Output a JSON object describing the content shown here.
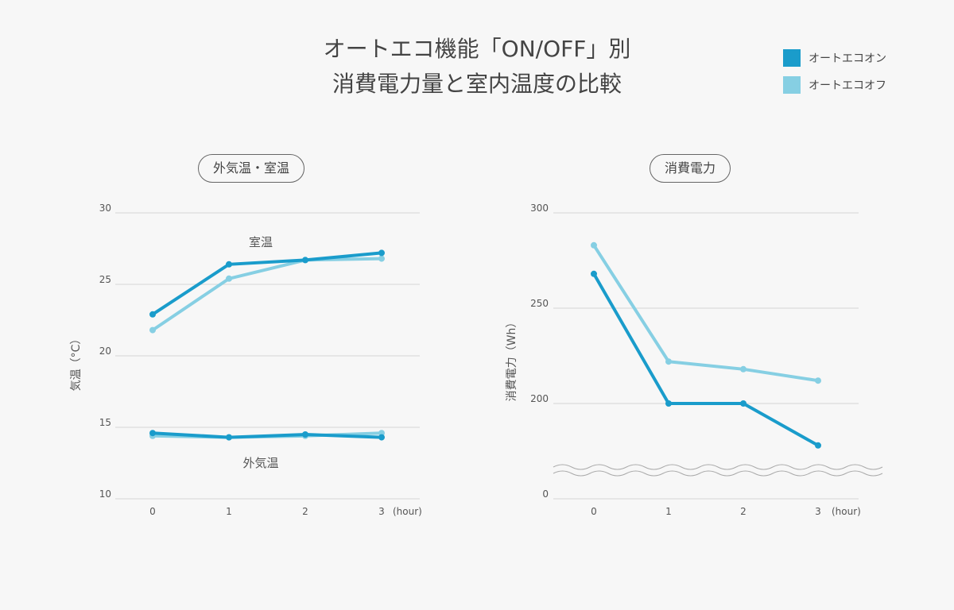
{
  "title_line1": "オートエコ機能「ON/OFF」別",
  "title_line2": "消費電力量と室内温度の比較",
  "legend": [
    {
      "label": "オートエコオン",
      "color": "#1a9ccb"
    },
    {
      "label": "オートエコオフ",
      "color": "#86cfe3"
    }
  ],
  "chart_data": [
    {
      "type": "line",
      "title": "外気温・室温",
      "ylabel": "気温（°C）",
      "x_unit": "(hour)",
      "x": [
        0,
        1,
        2,
        3
      ],
      "ylim": [
        10,
        30
      ],
      "yticks": [
        10,
        15,
        20,
        25,
        30
      ],
      "grid": true,
      "annotations": [
        "室温",
        "外気温"
      ],
      "series": [
        {
          "group": "室温",
          "name": "オートエコオン",
          "values": [
            22.9,
            26.4,
            26.7,
            27.2
          ]
        },
        {
          "group": "室温",
          "name": "オートエコオフ",
          "values": [
            21.8,
            25.4,
            26.7,
            26.8
          ]
        },
        {
          "group": "外気温",
          "name": "オートエコオン",
          "values": [
            14.6,
            14.3,
            14.5,
            14.3
          ]
        },
        {
          "group": "外気温",
          "name": "オートエコオフ",
          "values": [
            14.4,
            14.3,
            14.4,
            14.6
          ]
        }
      ]
    },
    {
      "type": "line",
      "title": "消費電力",
      "ylabel": "消費電力（Wh）",
      "x_unit": "(hour)",
      "x": [
        0,
        1,
        2,
        3
      ],
      "ylim": [
        0,
        300
      ],
      "axis_break": true,
      "yticks": [
        0,
        200,
        250,
        300
      ],
      "grid": true,
      "series": [
        {
          "name": "オートエコオン",
          "values": [
            268,
            200,
            200,
            178
          ]
        },
        {
          "name": "オートエコオフ",
          "values": [
            283,
            222,
            218,
            212
          ]
        }
      ]
    }
  ]
}
